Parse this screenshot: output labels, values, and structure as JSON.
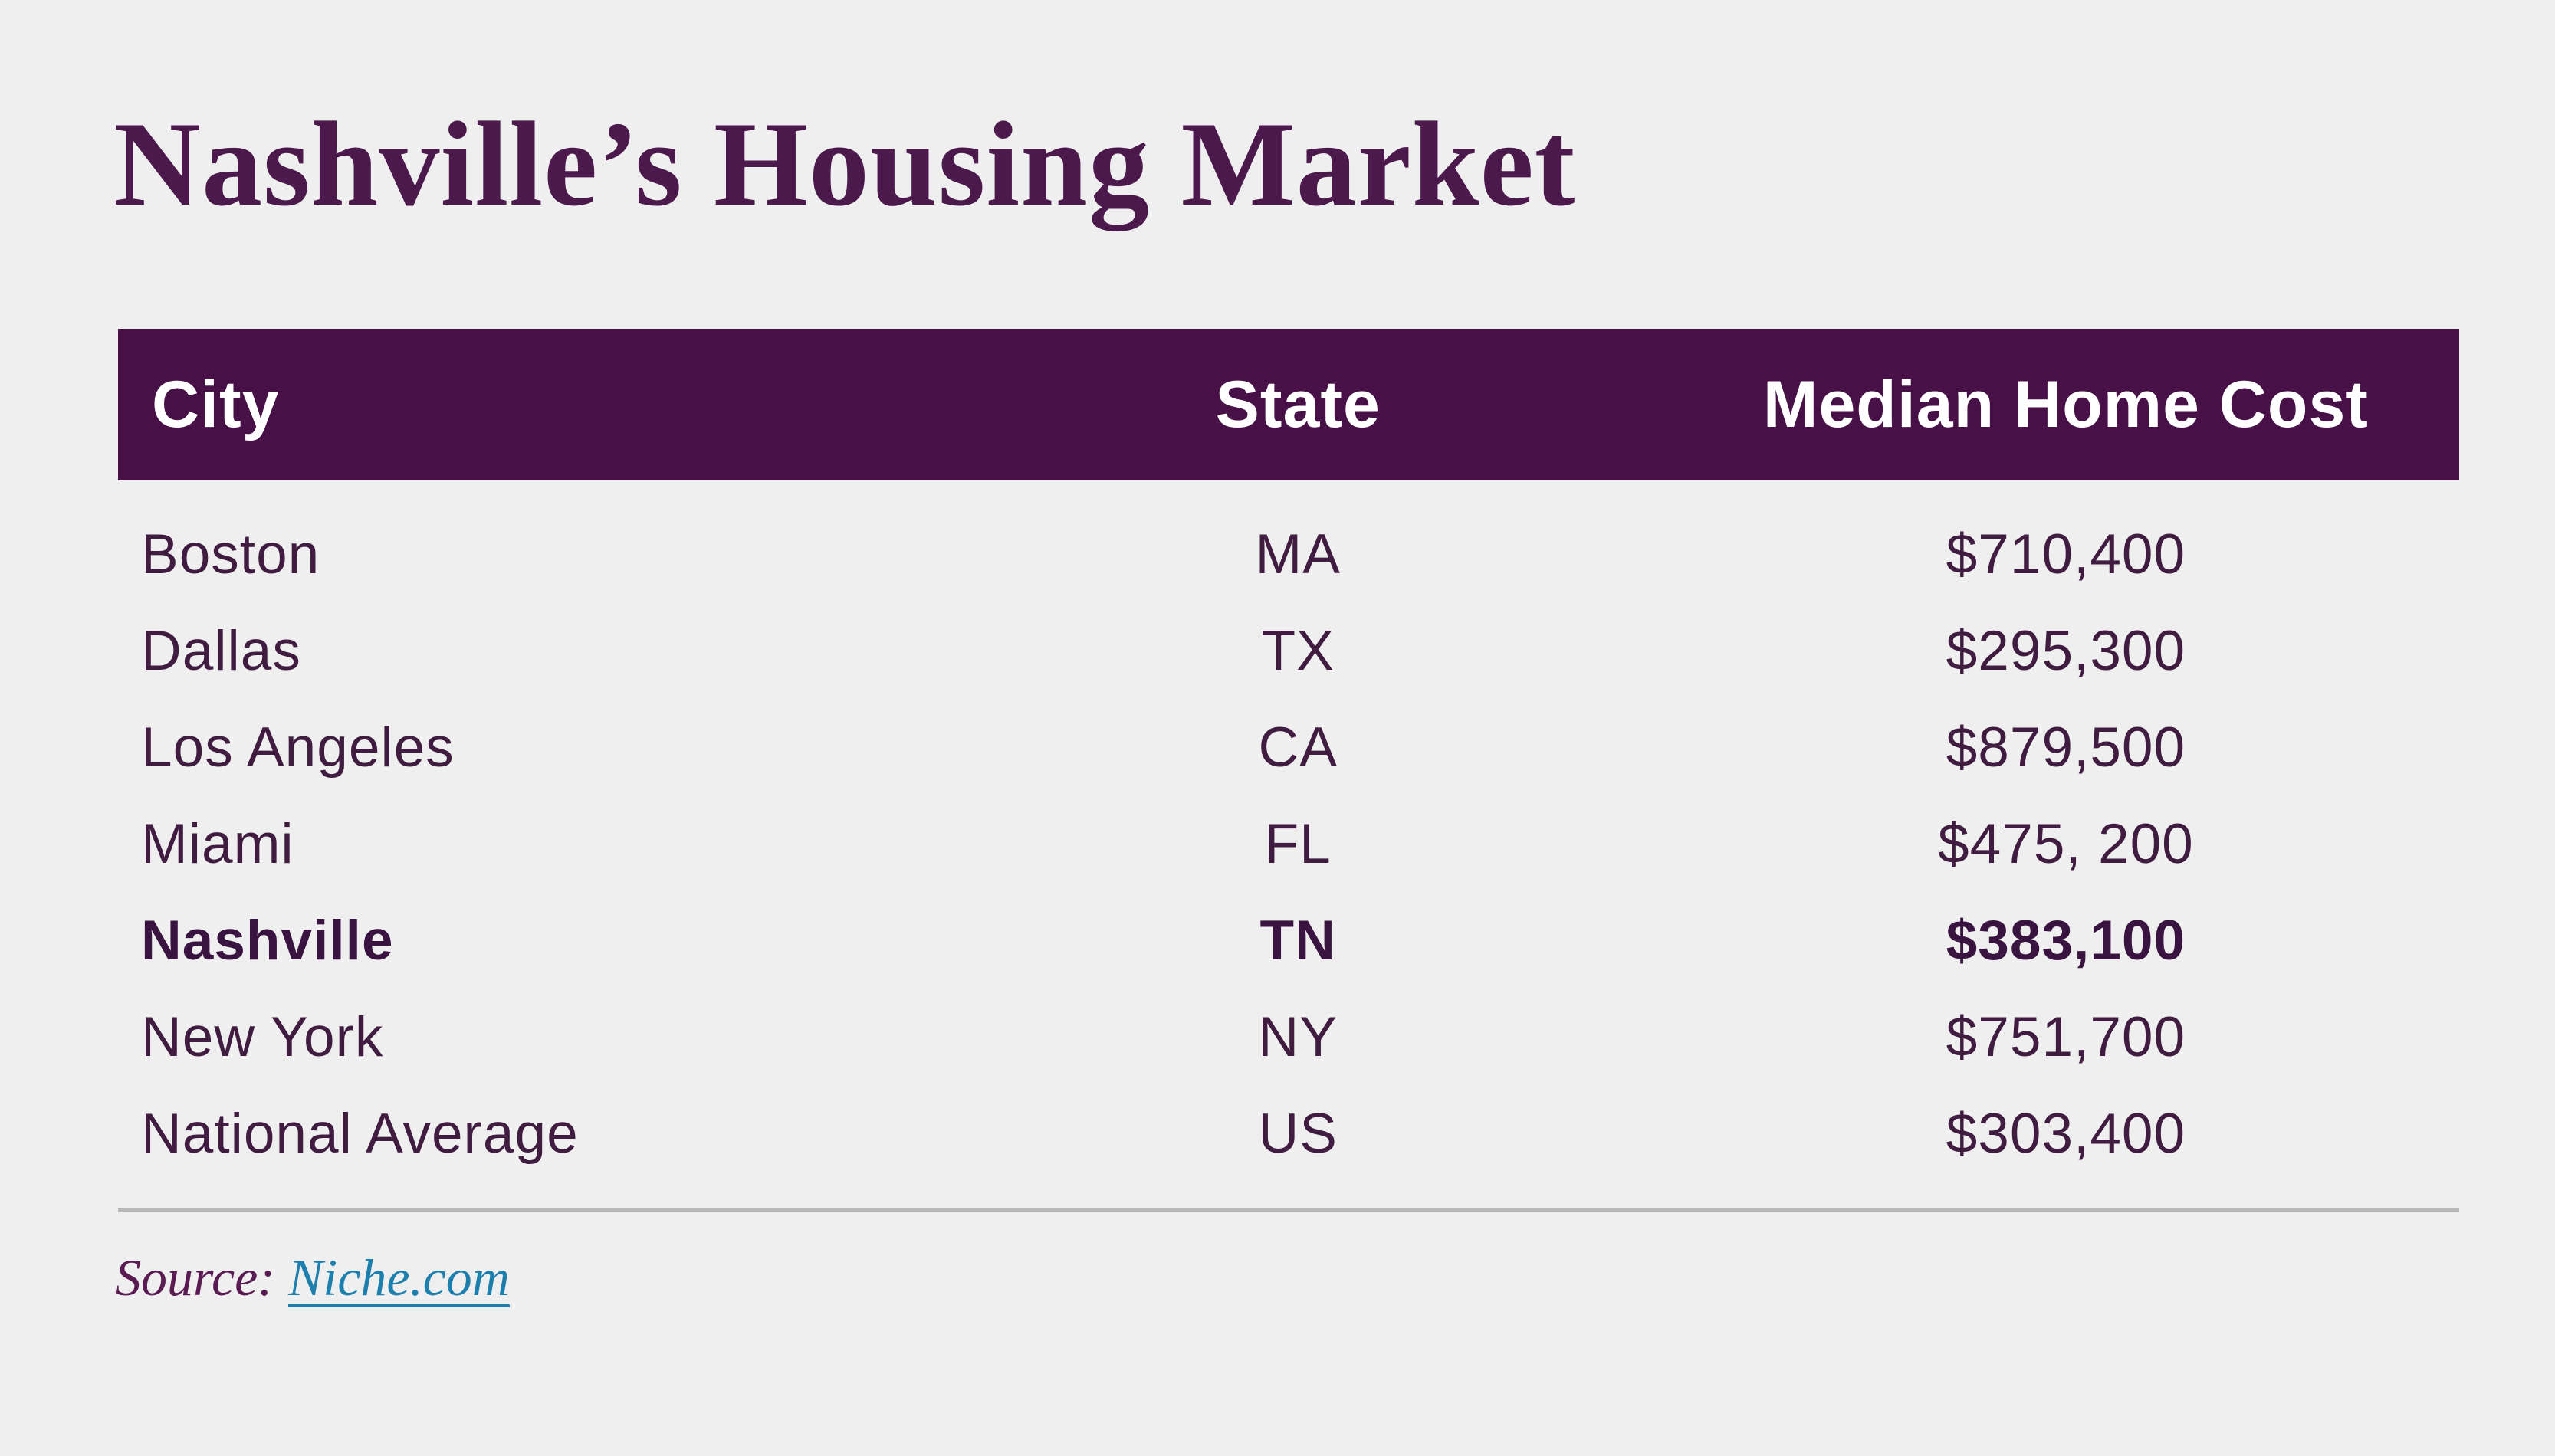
{
  "title": "Nashville’s Housing Market",
  "table": {
    "headers": {
      "city": "City",
      "state": "State",
      "cost": "Median Home Cost"
    },
    "rows": [
      {
        "city": "Boston",
        "state": "MA",
        "cost": "$710,400"
      },
      {
        "city": "Dallas",
        "state": "TX",
        "cost": "$295,300"
      },
      {
        "city": "Los Angeles",
        "state": "CA",
        "cost": "$879,500"
      },
      {
        "city": "Miami",
        "state": "FL",
        "cost": "$475, 200"
      },
      {
        "city": "Nashville",
        "state": "TN",
        "cost": "$383,100"
      },
      {
        "city": "New York",
        "state": "NY",
        "cost": "$751,700"
      },
      {
        "city": "National Average",
        "state": "US",
        "cost": "$303,400"
      }
    ],
    "highlighted_row": "Nashville"
  },
  "source": {
    "label": "Source:",
    "link_text": "Niche.com"
  },
  "colors": {
    "background": "#f0eff0",
    "title_text": "#4c194c",
    "header_background": "#471047",
    "header_text": "#ffffff",
    "row_text": "#3f1c40",
    "divider": "#b9b8b9",
    "source_text": "#5a1a52",
    "link_text": "#1c7fae"
  },
  "chart_data": {
    "type": "table",
    "title": "Nashville’s Housing Market",
    "columns": [
      "City",
      "State",
      "Median Home Cost"
    ],
    "rows": [
      [
        "Boston",
        "MA",
        "$710,400"
      ],
      [
        "Dallas",
        "TX",
        "$295,300"
      ],
      [
        "Los Angeles",
        "CA",
        "$879,500"
      ],
      [
        "Miami",
        "FL",
        "$475, 200"
      ],
      [
        "Nashville",
        "TN",
        "$383,100"
      ],
      [
        "New York",
        "NY",
        "$751,700"
      ],
      [
        "National Average",
        "US",
        "$303,400"
      ]
    ],
    "median_home_cost_usd": {
      "Boston": 710400,
      "Dallas": 295300,
      "Los Angeles": 879500,
      "Miami": 475200,
      "Nashville": 383100,
      "New York": 751700,
      "National Average": 303400
    },
    "highlighted_row": "Nashville",
    "source": "Niche.com"
  }
}
